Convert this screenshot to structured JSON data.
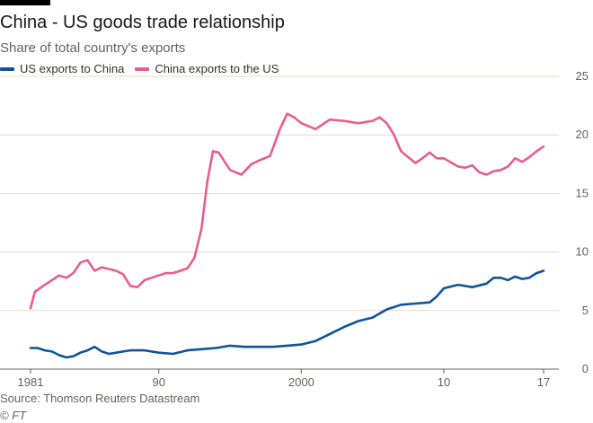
{
  "header": {
    "title": "China - US goods trade relationship",
    "subtitle": "Share of total country's exports"
  },
  "footer": {
    "source": "Source: Thomson Reuters Datastream",
    "copyright": "© FT"
  },
  "chart_data": {
    "type": "line",
    "title": "China - US goods trade relationship",
    "subtitle": "Share of total country's exports",
    "xlabel": "",
    "ylabel": "",
    "xlim": [
      1981,
      2017
    ],
    "ylim": [
      0,
      25
    ],
    "x_ticks": [
      1981,
      1990,
      2000,
      2010,
      2017
    ],
    "x_tick_labels": [
      "1981",
      "90",
      "2000",
      "10",
      "17"
    ],
    "y_ticks": [
      0,
      5,
      10,
      15,
      20,
      25
    ],
    "y_tick_labels": [
      "0",
      "5",
      "10",
      "15",
      "20",
      "25"
    ],
    "y_axis_side": "right",
    "grid": "horizontal",
    "legend_placement": "top-left",
    "series": [
      {
        "name": "US exports to China",
        "color": "#0f5499",
        "points": [
          [
            1981,
            1.8
          ],
          [
            1981.5,
            1.8
          ],
          [
            1982,
            1.6
          ],
          [
            1982.5,
            1.5
          ],
          [
            1983,
            1.2
          ],
          [
            1983.5,
            1.0
          ],
          [
            1984,
            1.1
          ],
          [
            1984.5,
            1.4
          ],
          [
            1985,
            1.6
          ],
          [
            1985.5,
            1.9
          ],
          [
            1986,
            1.5
          ],
          [
            1986.5,
            1.3
          ],
          [
            1987,
            1.4
          ],
          [
            1987.5,
            1.5
          ],
          [
            1988,
            1.6
          ],
          [
            1989,
            1.6
          ],
          [
            1990,
            1.4
          ],
          [
            1991,
            1.3
          ],
          [
            1992,
            1.6
          ],
          [
            1993,
            1.7
          ],
          [
            1994,
            1.8
          ],
          [
            1995,
            2.0
          ],
          [
            1996,
            1.9
          ],
          [
            1997,
            1.9
          ],
          [
            1998,
            1.9
          ],
          [
            1999,
            2.0
          ],
          [
            2000,
            2.1
          ],
          [
            2001,
            2.4
          ],
          [
            2002,
            3.0
          ],
          [
            2003,
            3.6
          ],
          [
            2004,
            4.1
          ],
          [
            2005,
            4.4
          ],
          [
            2006,
            5.1
          ],
          [
            2007,
            5.5
          ],
          [
            2008,
            5.6
          ],
          [
            2009,
            5.7
          ],
          [
            2009.5,
            6.2
          ],
          [
            2010,
            6.9
          ],
          [
            2011,
            7.2
          ],
          [
            2012,
            7.0
          ],
          [
            2013,
            7.3
          ],
          [
            2013.5,
            7.8
          ],
          [
            2014,
            7.8
          ],
          [
            2014.5,
            7.6
          ],
          [
            2015,
            7.9
          ],
          [
            2015.5,
            7.7
          ],
          [
            2016,
            7.8
          ],
          [
            2016.5,
            8.2
          ],
          [
            2017,
            8.4
          ]
        ]
      },
      {
        "name": "China exports to the US",
        "color": "#e95d8c",
        "points": [
          [
            1981,
            5.2
          ],
          [
            1981.3,
            6.6
          ],
          [
            1982,
            7.2
          ],
          [
            1982.5,
            7.6
          ],
          [
            1983,
            8.0
          ],
          [
            1983.5,
            7.8
          ],
          [
            1984,
            8.2
          ],
          [
            1984.5,
            9.1
          ],
          [
            1985,
            9.3
          ],
          [
            1985.5,
            8.4
          ],
          [
            1986,
            8.7
          ],
          [
            1987,
            8.4
          ],
          [
            1987.5,
            8.1
          ],
          [
            1988,
            7.1
          ],
          [
            1988.5,
            7.0
          ],
          [
            1989,
            7.6
          ],
          [
            1990,
            8.0
          ],
          [
            1990.5,
            8.2
          ],
          [
            1991,
            8.2
          ],
          [
            1992,
            8.6
          ],
          [
            1992.5,
            9.5
          ],
          [
            1993,
            12.0
          ],
          [
            1993.4,
            16.0
          ],
          [
            1993.8,
            18.6
          ],
          [
            1994.2,
            18.5
          ],
          [
            1995,
            17.0
          ],
          [
            1995.8,
            16.6
          ],
          [
            1996.5,
            17.5
          ],
          [
            1997,
            17.8
          ],
          [
            1997.8,
            18.2
          ],
          [
            1998.5,
            20.5
          ],
          [
            1999,
            21.8
          ],
          [
            1999.5,
            21.5
          ],
          [
            2000,
            21.0
          ],
          [
            2001,
            20.5
          ],
          [
            2002,
            21.3
          ],
          [
            2003,
            21.2
          ],
          [
            2004,
            21.0
          ],
          [
            2005,
            21.2
          ],
          [
            2005.5,
            21.5
          ],
          [
            2006,
            21.0
          ],
          [
            2006.5,
            20.0
          ],
          [
            2007,
            18.6
          ],
          [
            2008,
            17.6
          ],
          [
            2008.5,
            18.0
          ],
          [
            2009,
            18.5
          ],
          [
            2009.5,
            18.0
          ],
          [
            2010,
            18.0
          ],
          [
            2011,
            17.3
          ],
          [
            2011.5,
            17.2
          ],
          [
            2012,
            17.4
          ],
          [
            2012.5,
            16.8
          ],
          [
            2013,
            16.6
          ],
          [
            2013.5,
            16.9
          ],
          [
            2014,
            17.0
          ],
          [
            2014.5,
            17.3
          ],
          [
            2015,
            18.0
          ],
          [
            2015.5,
            17.7
          ],
          [
            2016,
            18.1
          ],
          [
            2016.5,
            18.6
          ],
          [
            2017,
            19.0
          ]
        ]
      }
    ]
  }
}
